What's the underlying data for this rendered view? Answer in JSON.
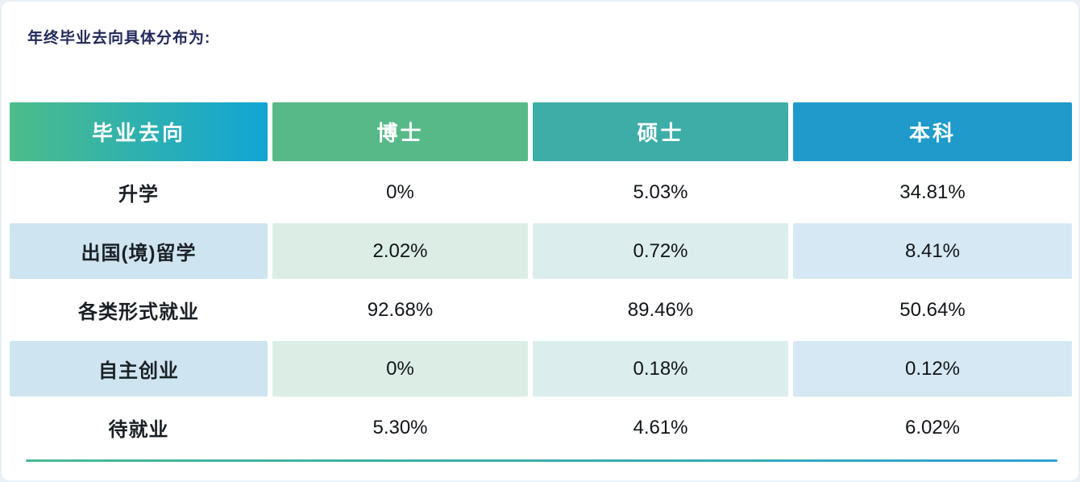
{
  "page": {
    "title": "年终毕业去向具体分布为:"
  },
  "colors": {
    "title_text": "#222a5a",
    "label_text": "#1a2026",
    "value_text": "#121519",
    "header_col1_start": "#4cbc89",
    "header_col1_end": "#12a5d5",
    "header_col2": "#57b987",
    "header_col3": "#3eada8",
    "header_col4": "#1f9aca",
    "tint_col1": "#cee4f1",
    "tint_col2": "#dcede5",
    "tint_col3": "#dcedee",
    "tint_col4": "#d5e8f3",
    "divider_start": "#49b794",
    "divider_end": "#2da2cd"
  },
  "table": {
    "headers": [
      "毕业去向",
      "博士",
      "硕士",
      "本科"
    ],
    "rows": [
      {
        "label": "升学",
        "values": [
          "0%",
          "5.03%",
          "34.81%"
        ],
        "tinted": false
      },
      {
        "label": "出国(境)留学",
        "values": [
          "2.02%",
          "0.72%",
          "8.41%"
        ],
        "tinted": true
      },
      {
        "label": "各类形式就业",
        "values": [
          "92.68%",
          "89.46%",
          "50.64%"
        ],
        "tinted": false
      },
      {
        "label": "自主创业",
        "values": [
          "0%",
          "0.18%",
          "0.12%"
        ],
        "tinted": true
      },
      {
        "label": "待就业",
        "values": [
          "5.30%",
          "4.61%",
          "6.02%"
        ],
        "tinted": false
      }
    ]
  },
  "chart_data": {
    "type": "table",
    "title": "年终毕业去向具体分布为:",
    "columns": [
      "毕业去向",
      "博士",
      "硕士",
      "本科"
    ],
    "rows": [
      [
        "升学",
        "0%",
        "5.03%",
        "34.81%"
      ],
      [
        "出国(境)留学",
        "2.02%",
        "0.72%",
        "8.41%"
      ],
      [
        "各类形式就业",
        "92.68%",
        "89.46%",
        "50.64%"
      ],
      [
        "自主创业",
        "0%",
        "0.18%",
        "0.12%"
      ],
      [
        "待就业",
        "5.30%",
        "4.61%",
        "6.02%"
      ]
    ],
    "series": [
      {
        "name": "博士",
        "values": [
          0,
          2.02,
          92.68,
          0,
          5.3
        ]
      },
      {
        "name": "硕士",
        "values": [
          5.03,
          0.72,
          89.46,
          0.18,
          4.61
        ]
      },
      {
        "name": "本科",
        "values": [
          34.81,
          8.41,
          50.64,
          0.12,
          6.02
        ]
      }
    ],
    "categories": [
      "升学",
      "出国(境)留学",
      "各类形式就业",
      "自主创业",
      "待就业"
    ],
    "unit": "%"
  }
}
